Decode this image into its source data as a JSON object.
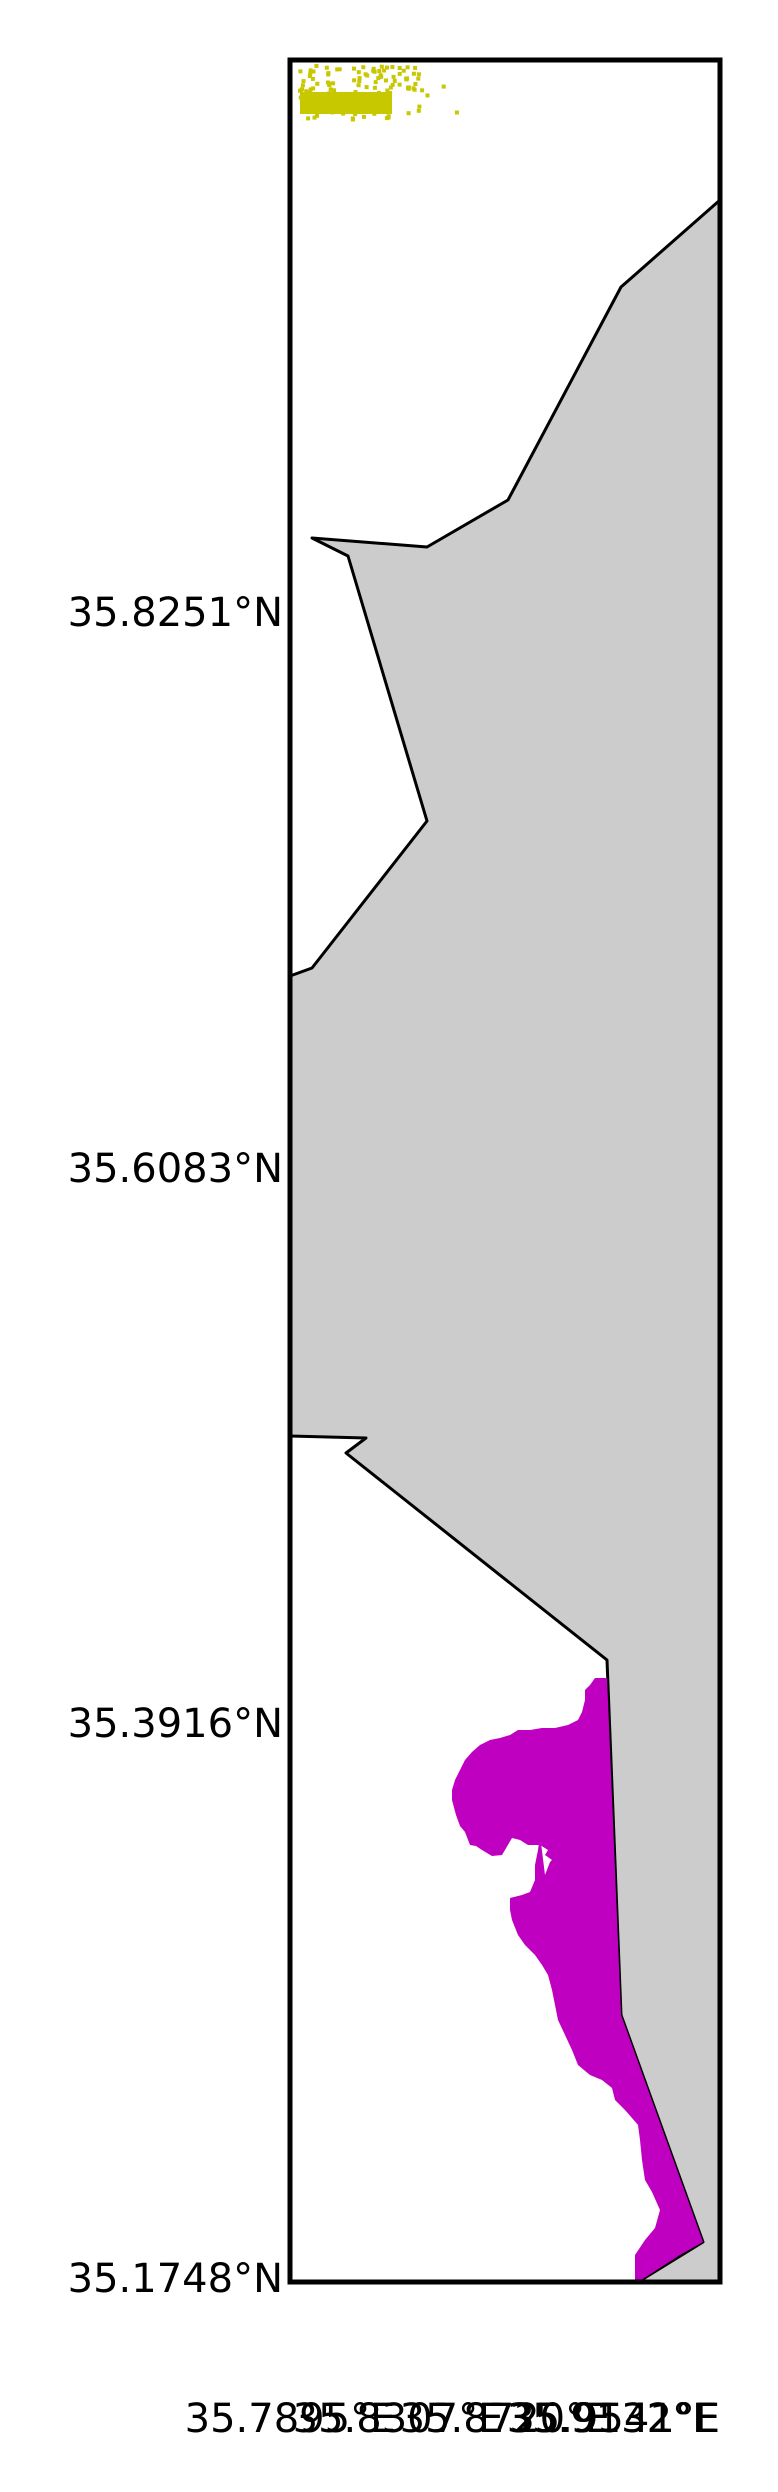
{
  "map": {
    "land_color": "#cccccc",
    "coast_color": "#000000",
    "frame_color": "#000000",
    "background_color": "#ffffff",
    "lat_labels": [
      "35.8251°N",
      "35.6083°N",
      "35.3916°N",
      "35.1748°N"
    ],
    "lon_labels": [
      "35.7895°E",
      "35.8307°E",
      "35.8720°E",
      "35.9132°E",
      "35.9541°E"
    ]
  },
  "layers": [
    {
      "name": "yellow-point-cluster",
      "color": "#c8c800"
    },
    {
      "name": "magenta-coastal-region",
      "color": "#c000c0"
    }
  ]
}
